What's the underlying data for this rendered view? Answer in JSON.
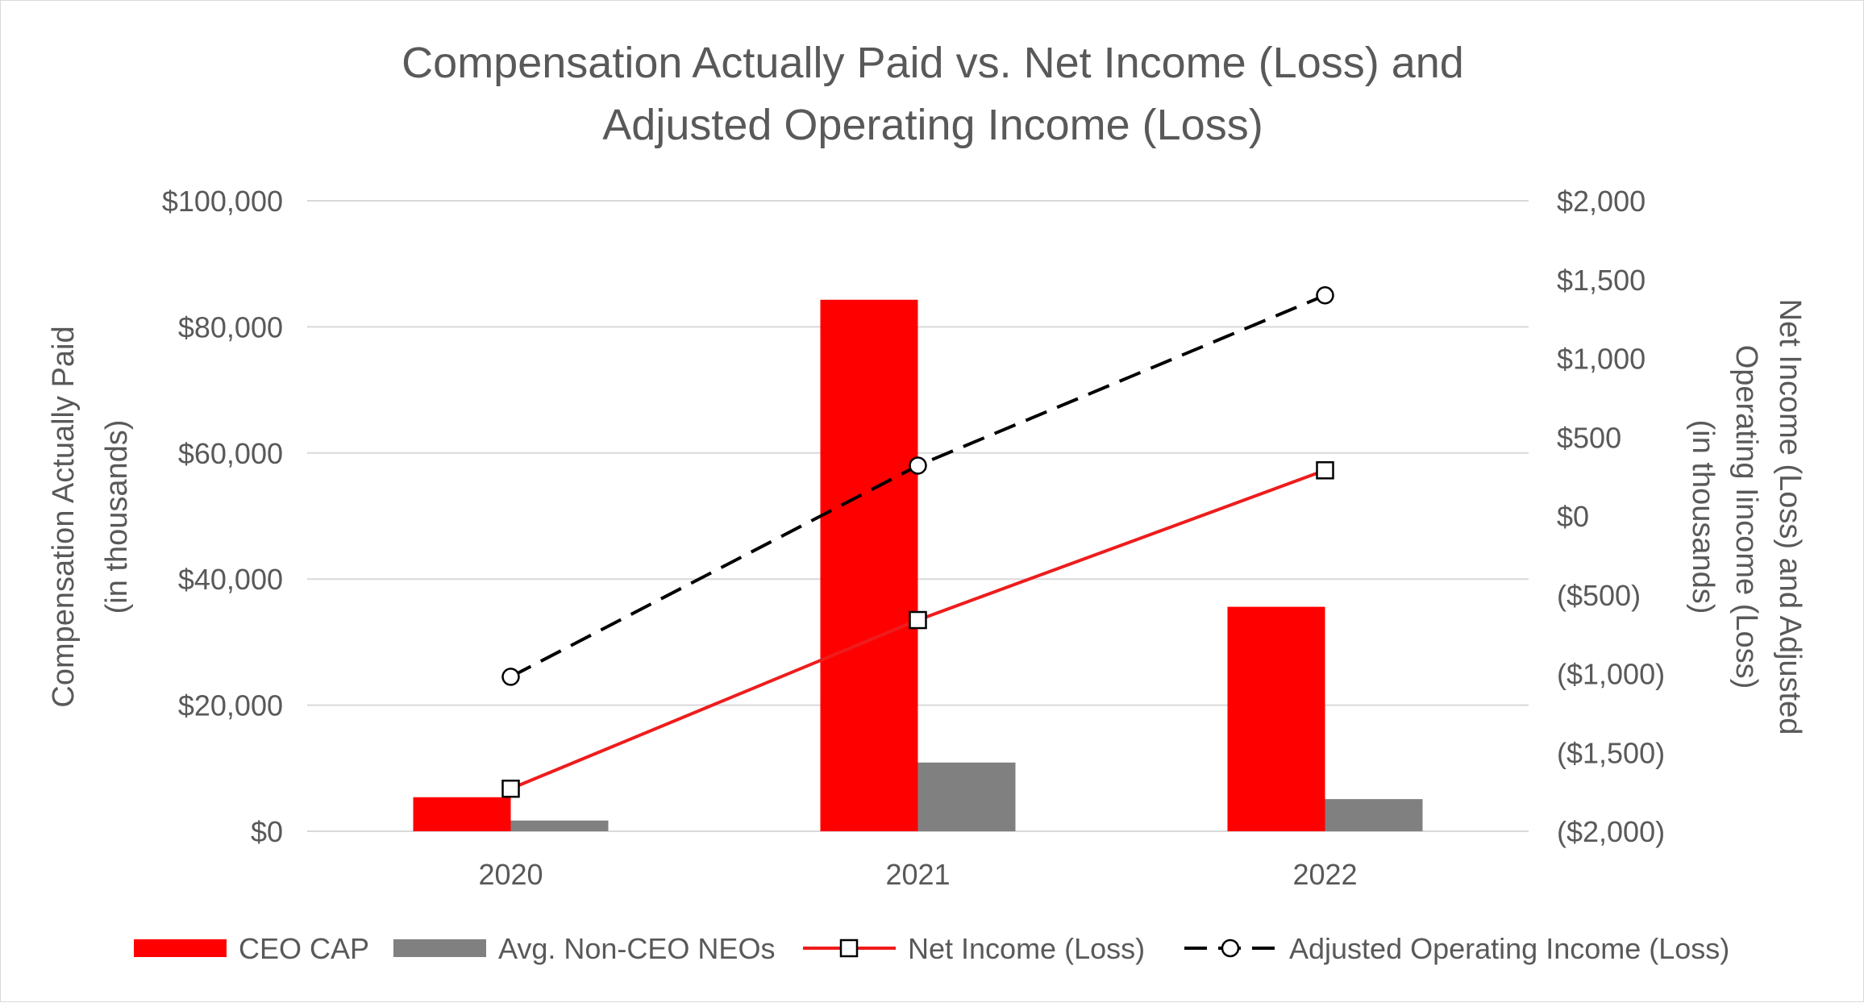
{
  "chart_data": {
    "type": "bar",
    "title": [
      "Compensation Actually Paid vs. Net Income (Loss) and",
      "Adjusted Operating Income (Loss)"
    ],
    "categories": [
      "2020",
      "2021",
      "2022"
    ],
    "left_axis": {
      "label": [
        "Compensation Actually Paid",
        "(in thousands)"
      ],
      "ylim": [
        0,
        100000
      ],
      "ticks": [
        0,
        20000,
        40000,
        60000,
        80000,
        100000
      ],
      "tick_labels": [
        "$0",
        "$20,000",
        "$40,000",
        "$60,000",
        "$80,000",
        "$100,000"
      ]
    },
    "right_axis": {
      "label": [
        "Net Income (Loss) and Adjusted",
        "Operating Iincome (Loss)",
        "(in thousands)"
      ],
      "ylim": [
        -2000,
        2000
      ],
      "ticks": [
        -2000,
        -1500,
        -1000,
        -500,
        0,
        500,
        1000,
        1500,
        2000
      ],
      "tick_labels": [
        "($2,000)",
        "($1,500)",
        "($1,000)",
        "($500)",
        "$0",
        "$500",
        "$1,000",
        "$1,500",
        "$2,000"
      ]
    },
    "grid": true,
    "legend_position": "bottom",
    "series": [
      {
        "name": "CEO CAP",
        "type": "bar",
        "axis": "left",
        "color": "#ff0000",
        "values": [
          5400,
          84300,
          35600
        ]
      },
      {
        "name": "Avg. Non-CEO NEOs",
        "type": "bar",
        "axis": "left",
        "color": "#808080",
        "values": [
          1700,
          10900,
          5100
        ]
      },
      {
        "name": "Net Income (Loss)",
        "type": "line",
        "axis": "right",
        "color": "#ee1c1c",
        "marker": "square",
        "dash": "solid",
        "values": [
          -1730,
          -660,
          290
        ]
      },
      {
        "name": "Adjusted Operating Income (Loss)",
        "type": "line",
        "axis": "right",
        "color": "#000000",
        "marker": "circle",
        "dash": "dashed",
        "values": [
          -1020,
          320,
          1400
        ]
      }
    ]
  }
}
